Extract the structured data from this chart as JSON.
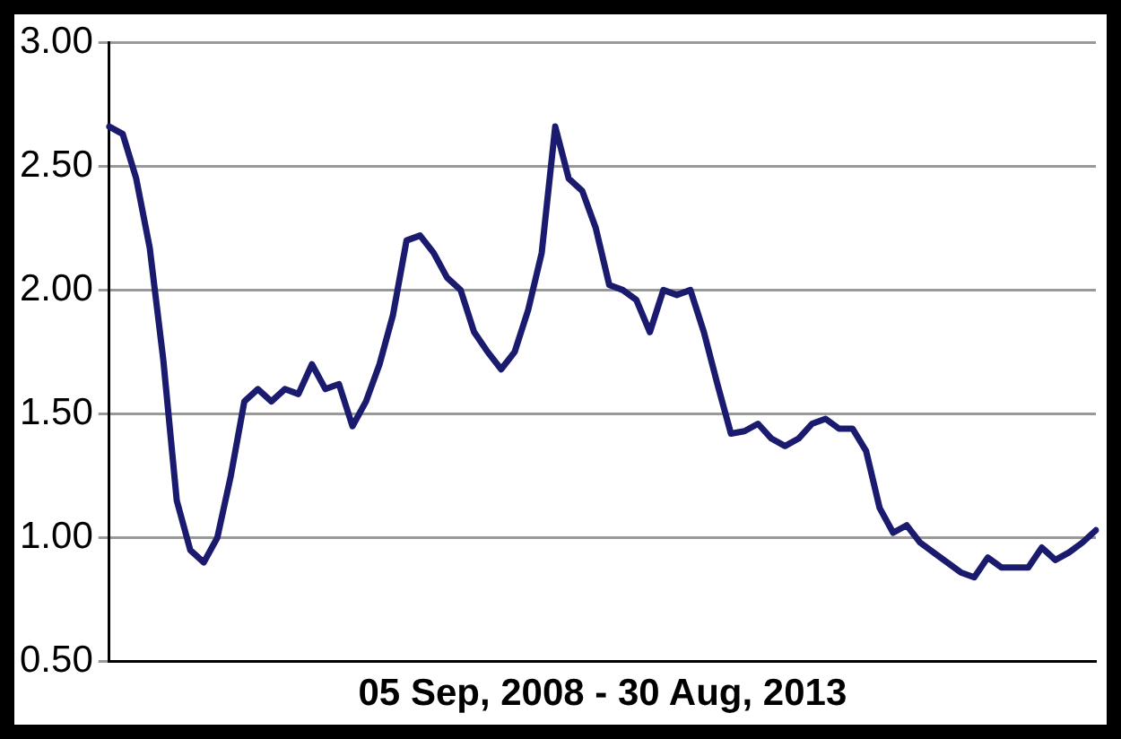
{
  "chart_data": {
    "type": "line",
    "xlabel": "05 Sep, 2008 - 30 Aug, 2013",
    "categories": [
      null,
      null,
      null,
      null,
      null,
      null,
      null,
      null,
      null,
      null,
      null,
      null,
      null,
      null,
      null,
      null,
      null,
      null,
      null,
      null,
      null,
      null,
      null,
      null,
      null,
      null,
      null,
      null,
      null,
      null,
      null,
      null,
      null,
      null,
      null,
      null,
      null,
      null,
      null,
      null,
      null,
      null,
      null,
      null,
      null,
      null,
      null,
      null,
      null,
      null,
      null,
      null,
      null,
      null,
      null,
      null,
      null,
      null,
      null,
      null,
      null,
      null,
      null,
      null,
      null,
      null,
      null,
      null,
      null,
      null,
      null,
      null,
      null,
      null
    ],
    "series": [
      {
        "color": "#1a1a6e",
        "values": [
          2.66,
          2.63,
          2.45,
          2.17,
          1.72,
          1.15,
          0.95,
          0.9,
          1.0,
          1.25,
          1.55,
          1.6,
          1.55,
          1.6,
          1.58,
          1.7,
          1.6,
          1.62,
          1.45,
          1.55,
          1.7,
          1.9,
          2.2,
          2.22,
          2.15,
          2.05,
          2.0,
          1.83,
          1.75,
          1.68,
          1.75,
          1.92,
          2.15,
          2.66,
          2.45,
          2.4,
          2.25,
          2.02,
          2.0,
          1.96,
          1.83,
          2.0,
          1.98,
          2.0,
          1.83,
          1.62,
          1.42,
          1.43,
          1.46,
          1.4,
          1.37,
          1.4,
          1.46,
          1.48,
          1.44,
          1.44,
          1.35,
          1.12,
          1.02,
          1.05,
          0.98,
          0.94,
          0.9,
          0.86,
          0.84,
          0.92,
          0.88,
          0.88,
          0.88,
          0.96,
          0.91,
          0.94,
          0.98,
          1.03
        ]
      }
    ],
    "ylim": [
      0.5,
      3.0
    ],
    "yticks": [
      {
        "value": 0.5,
        "label": "0.50"
      },
      {
        "value": 1.0,
        "label": "1.00"
      },
      {
        "value": 1.5,
        "label": "1.50"
      },
      {
        "value": 2.0,
        "label": "2.00"
      },
      {
        "value": 2.5,
        "label": "2.50"
      },
      {
        "value": 3.0,
        "label": "3.00"
      }
    ],
    "grid": "y",
    "legend": false,
    "tick_labels": "y",
    "marker": "none",
    "line_style": "solid"
  }
}
